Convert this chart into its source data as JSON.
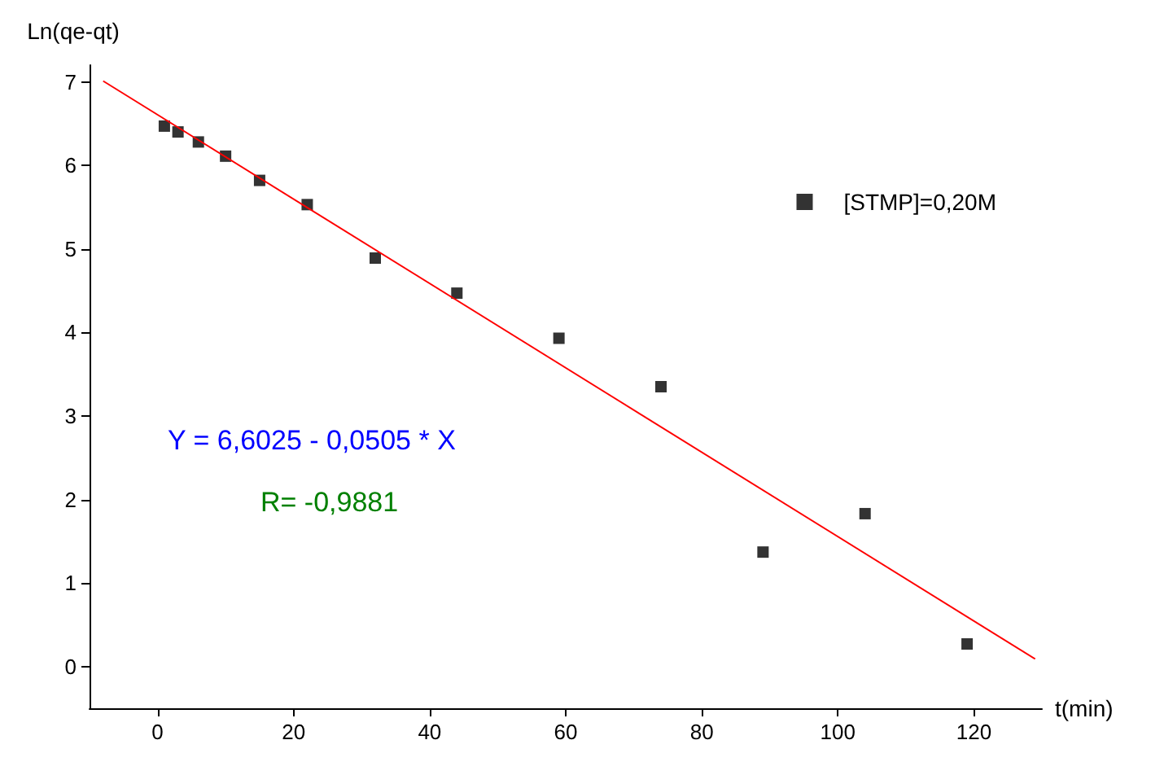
{
  "chart_data": {
    "type": "scatter",
    "xlabel": "t(min)",
    "ylabel": "Ln(qe-qt)",
    "x": [
      1,
      3,
      6,
      10,
      15,
      22,
      32,
      44,
      59,
      74,
      89,
      104,
      119
    ],
    "series": [
      {
        "name": "[STMP]=0,20M",
        "color": "#000000",
        "marker": "square",
        "values": [
          6.47,
          6.4,
          6.28,
          6.11,
          5.82,
          5.53,
          4.89,
          4.47,
          3.93,
          3.35,
          1.37,
          1.83,
          0.27
        ]
      },
      {
        "type": "line",
        "color": "#ff0000",
        "marker": "none",
        "line_style": "solid",
        "x": [
          -8,
          129
        ],
        "values": [
          7.01,
          0.09
        ]
      }
    ],
    "annotations": [
      "Y = 6,6025 - 0,0505 * X",
      "R= -0,9881"
    ],
    "xlim": [
      -10,
      130
    ],
    "ylim": [
      -0.5,
      7.2
    ],
    "xticks": [
      0,
      20,
      40,
      60,
      80,
      100,
      120
    ],
    "yticks": [
      0,
      1,
      2,
      3,
      4,
      5,
      6,
      7
    ],
    "grid": false,
    "legend": "top right"
  }
}
